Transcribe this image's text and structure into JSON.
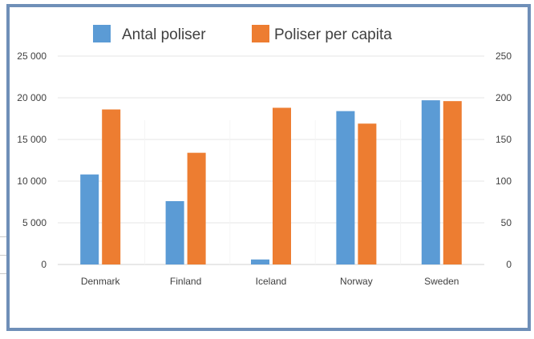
{
  "chart_data": {
    "type": "bar",
    "title": "",
    "categories": [
      "Denmark",
      "Finland",
      "Iceland",
      "Norway",
      "Sweden"
    ],
    "series": [
      {
        "name": "Antal poliser",
        "axis": "left",
        "color": "#5b9bd5",
        "values": [
          10800,
          7600,
          600,
          18400,
          19700
        ]
      },
      {
        "name": "Poliser per capita",
        "axis": "right",
        "color": "#ed7d31",
        "values": [
          186,
          134,
          188,
          169,
          196
        ]
      }
    ],
    "y_left": {
      "min": 0,
      "max": 25000,
      "step": 5000,
      "tick_labels": [
        "0",
        "5 000",
        "10 000",
        "15 000",
        "20 000",
        "25 000"
      ]
    },
    "y_right": {
      "min": 0,
      "max": 250,
      "step": 50,
      "tick_labels": [
        "0",
        "50",
        "100",
        "150",
        "200",
        "250"
      ]
    },
    "grid": true,
    "legend": "top-center"
  }
}
